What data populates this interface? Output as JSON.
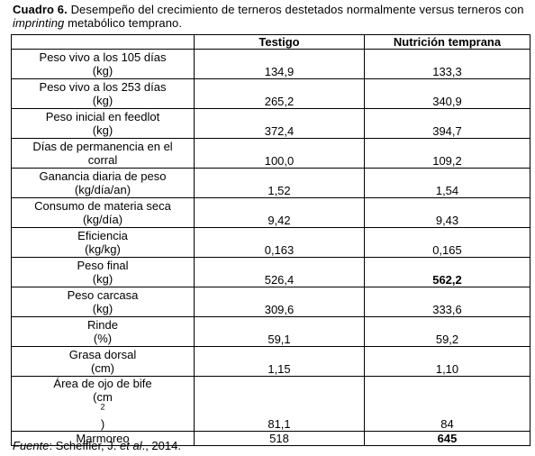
{
  "caption": {
    "label": "Cuadro 6.",
    "text_a": " Desempeño del crecimiento de terneros destetados normalmente versus terneros con ",
    "italic_word": "imprinting",
    "text_b": " metabólico temprano."
  },
  "table": {
    "headers": [
      "",
      "Testigo",
      "Nutrición temprana"
    ],
    "rows": [
      {
        "label_1": "Peso vivo a los 105 días",
        "label_2": "(kg)",
        "testigo": "134,9",
        "nutricion": "133,3"
      },
      {
        "label_1": "Peso vivo a los 253 días",
        "label_2": "(kg)",
        "testigo": "265,2",
        "nutricion": "340,9"
      },
      {
        "label_1": "Peso inicial en feedlot",
        "label_2": "(kg)",
        "testigo": "372,4",
        "nutricion": "394,7"
      },
      {
        "label_1": "Días de permanencia en el",
        "label_2": "corral",
        "testigo": "100,0",
        "nutricion": "109,2"
      },
      {
        "label_1": "Ganancia diaria de peso",
        "label_2": "(kg/día/an)",
        "testigo": "1,52",
        "nutricion": "1,54"
      },
      {
        "label_1": "Consumo de materia seca",
        "label_2": "(kg/día)",
        "testigo": "9,42",
        "nutricion": "9,43"
      },
      {
        "label_1": "Eficiencia",
        "label_2": "(kg/kg)",
        "testigo": "0,163",
        "nutricion": "0,165"
      },
      {
        "label_1": "Peso final",
        "label_2": "(kg)",
        "testigo": "526,4",
        "nutricion": "562,2"
      },
      {
        "label_1": "Peso carcasa",
        "label_2": "(kg)",
        "testigo": "309,6",
        "nutricion": "333,6"
      },
      {
        "label_1": "Rinde",
        "label_2": "(%)",
        "testigo": "59,1",
        "nutricion": "59,2"
      },
      {
        "label_1": "Grasa dorsal",
        "label_2": "(cm)",
        "testigo": "1,15",
        "nutricion": "1,10"
      },
      {
        "label_1": "Área de ojo de bife",
        "label_2_pre": "(cm",
        "label_2_sup": "2",
        "label_2_post": ")",
        "testigo": "81,1",
        "nutricion": "84"
      },
      {
        "label_1": "Marmoreo",
        "testigo": "518",
        "nutricion": "645"
      }
    ]
  },
  "source": {
    "label": "Fuente",
    "text_a": ": Scheffler, J. ",
    "italic": "et al",
    "text_b": "., 2014."
  }
}
